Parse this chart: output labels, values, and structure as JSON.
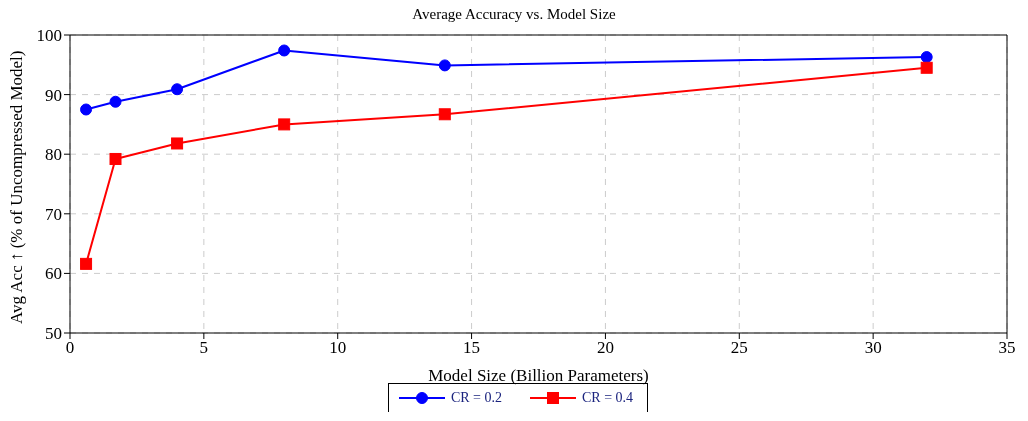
{
  "chart_data": {
    "type": "line",
    "title": "Average Accuracy vs. Model Size",
    "xlabel": "Model Size (Billion Parameters)",
    "ylabel": "Avg Acc ↑ (% of Uncompressed Model)",
    "x": [
      0.6,
      1.7,
      4,
      8,
      14,
      32
    ],
    "series": [
      {
        "name": "CR = 0.2",
        "color": "#0000ff",
        "marker": "circle",
        "values": [
          87.5,
          88.8,
          90.9,
          97.4,
          94.9,
          96.3
        ]
      },
      {
        "name": "CR = 0.4",
        "color": "#ff0000",
        "marker": "square",
        "values": [
          61.6,
          79.2,
          81.8,
          85.0,
          86.7,
          94.5
        ]
      }
    ],
    "xlim": [
      0,
      35
    ],
    "xticks": [
      0,
      5,
      10,
      15,
      20,
      25,
      30,
      35
    ],
    "ylim": [
      50,
      100
    ],
    "yticks": [
      50,
      60,
      70,
      80,
      90,
      100
    ],
    "grid": true,
    "legend": "bottom",
    "line_style": "solid"
  }
}
